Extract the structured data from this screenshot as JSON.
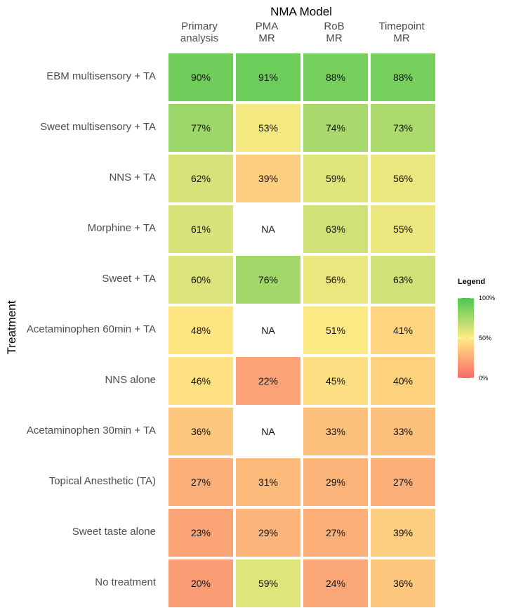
{
  "chart_data": {
    "type": "heatmap",
    "title": "NMA Model",
    "ylabel": "Treatment",
    "columns": [
      "Primary\nanalysis",
      "PMA\nMR",
      "RoB\nMR",
      "Timepoint\nMR"
    ],
    "rows": [
      "EBM multisensory + TA",
      "Sweet multisensory + TA",
      "NNS + TA",
      "Morphine + TA",
      "Sweet + TA",
      "Acetaminophen 60min + TA",
      "NNS alone",
      "Acetaminophen 30min + TA",
      "Topical Anesthetic (TA)",
      "Sweet taste alone",
      "No treatment"
    ],
    "values": [
      [
        90,
        91,
        88,
        88
      ],
      [
        77,
        53,
        74,
        73
      ],
      [
        62,
        39,
        59,
        56
      ],
      [
        61,
        null,
        63,
        55
      ],
      [
        60,
        76,
        56,
        63
      ],
      [
        48,
        null,
        51,
        41
      ],
      [
        46,
        22,
        45,
        40
      ],
      [
        36,
        null,
        33,
        33
      ],
      [
        27,
        31,
        29,
        27
      ],
      [
        23,
        29,
        27,
        39
      ],
      [
        20,
        59,
        24,
        36
      ]
    ],
    "value_suffix": "%",
    "na_label": "NA",
    "colorscale": {
      "low": "#f8696b",
      "mid": "#ffeb84",
      "high": "#4cc652",
      "range": [
        0,
        100
      ]
    },
    "legend": {
      "title": "Legend",
      "position": "right",
      "ticks": [
        "100%",
        "50%",
        "0%"
      ]
    }
  }
}
